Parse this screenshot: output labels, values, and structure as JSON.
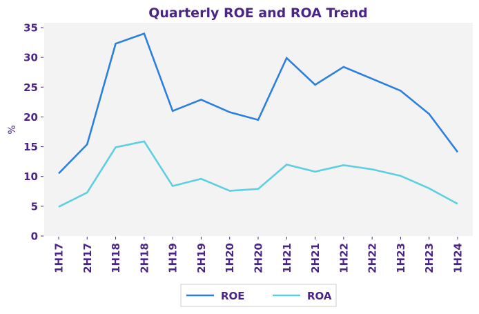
{
  "chart_data": {
    "type": "line",
    "title": "Quarterly ROE and ROA Trend",
    "xlabel": "",
    "ylabel": "%",
    "ylim": [
      0,
      35
    ],
    "yticks": [
      0,
      5,
      10,
      15,
      20,
      25,
      30,
      35
    ],
    "grid": false,
    "legend_position": "bottom-center",
    "categories": [
      "1H17",
      "2H17",
      "1H18",
      "2H18",
      "1H19",
      "2H19",
      "1H20",
      "2H20",
      "1H21",
      "2H21",
      "1H22",
      "2H22",
      "1H23",
      "2H23",
      "1H24"
    ],
    "series": [
      {
        "name": "ROE",
        "color": "#2a7fdf",
        "values": [
          10.5,
          15.4,
          32.3,
          34.0,
          21.0,
          22.9,
          20.8,
          19.5,
          29.9,
          25.4,
          28.4,
          26.4,
          24.4,
          20.5,
          14.1
        ]
      },
      {
        "name": "ROA",
        "color": "#5dcfe0",
        "values": [
          4.9,
          7.3,
          14.9,
          15.9,
          8.4,
          9.6,
          7.6,
          7.9,
          12.0,
          10.8,
          11.9,
          11.2,
          10.1,
          8.0,
          5.4
        ]
      }
    ]
  },
  "colors": {
    "text": "#4a2587",
    "plot_background": "#f3f3f3",
    "legend_border": "#cccccc"
  }
}
